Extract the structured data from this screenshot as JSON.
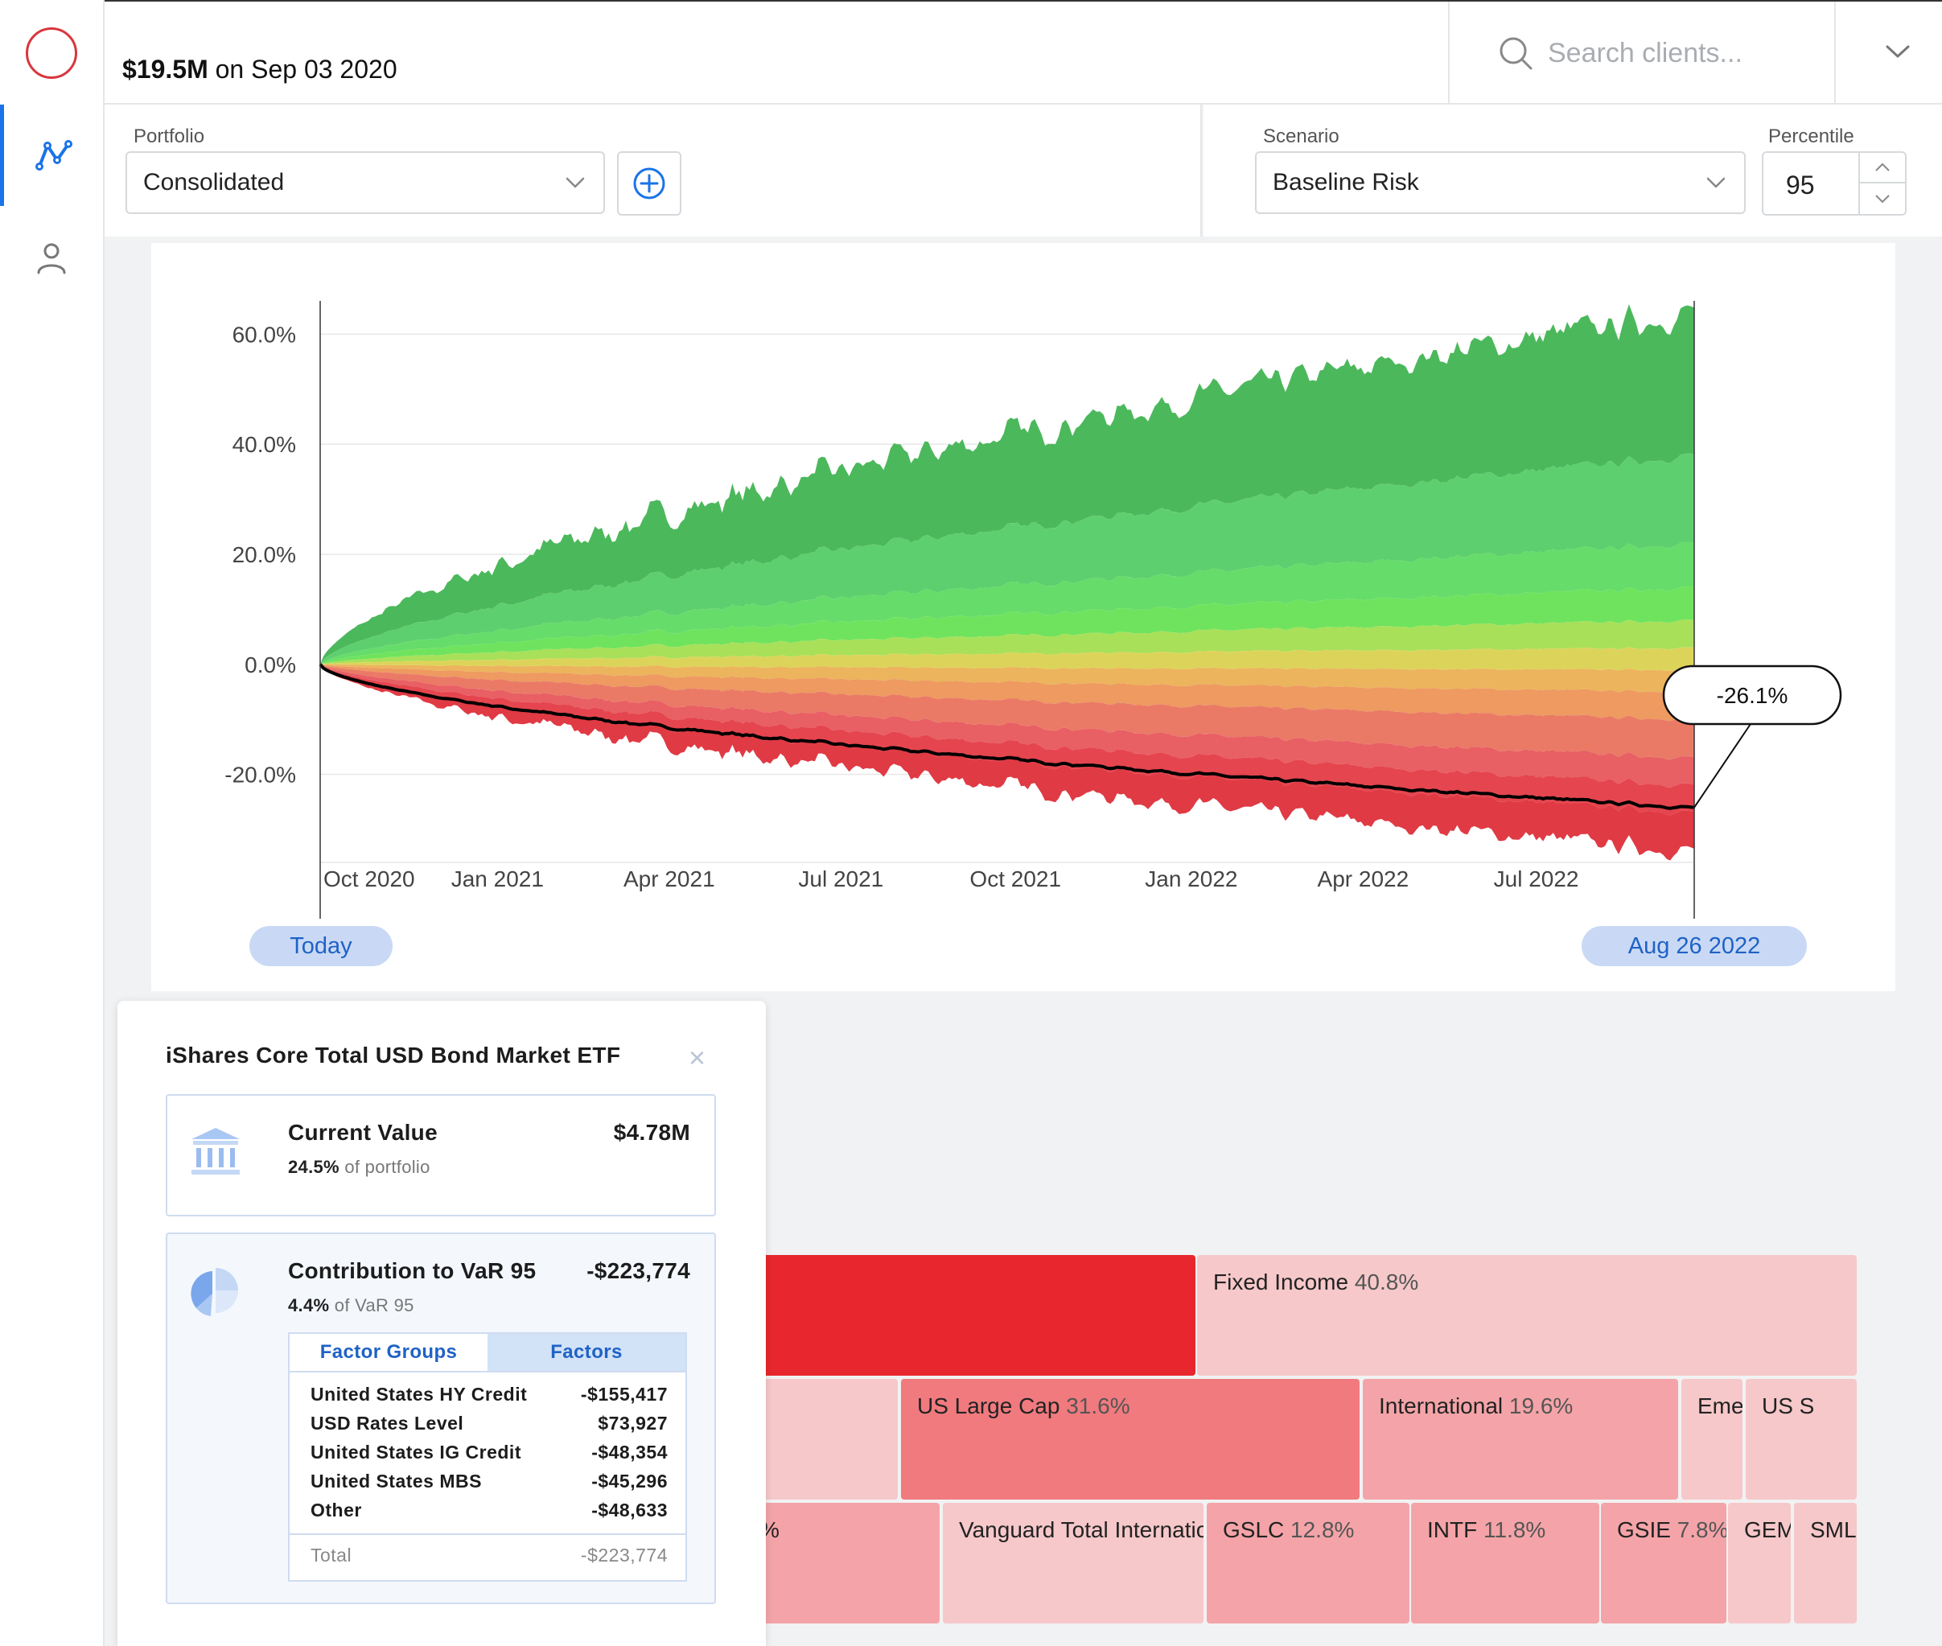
{
  "header": {
    "value": "$19.5M",
    "date_text": "on Sep 03 2020",
    "search_placeholder": "Search clients..."
  },
  "controls": {
    "portfolio_label": "Portfolio",
    "portfolio_value": "Consolidated",
    "scenario_label": "Scenario",
    "scenario_value": "Baseline Risk",
    "percentile_label": "Percentile",
    "percentile_value": "95"
  },
  "chart_data": {
    "type": "area",
    "x_ticks": [
      "Oct 2020",
      "Jan 2021",
      "Apr 2021",
      "Jul 2021",
      "Oct 2021",
      "Jan 2022",
      "Apr 2022",
      "Jul 2022"
    ],
    "y_ticks": [
      "60.0%",
      "40.0%",
      "20.0%",
      "0.0%",
      "-20.0%"
    ],
    "ylim": [
      -36,
      64
    ],
    "x_range": [
      "2020-09-03",
      "2022-08-26"
    ],
    "bands_end_values": [
      64,
      38,
      22,
      14,
      8,
      3,
      -1,
      -5,
      -10,
      -17,
      -22,
      -27,
      -34
    ],
    "band_colors": [
      "#4cb85c",
      "#5ecf6e",
      "#66dc6a",
      "#6fe35e",
      "#a8e05a",
      "#dcd45a",
      "#ecb45c",
      "#ee9a60",
      "#ea7a66",
      "#e85f64",
      "#e5454e",
      "#e03a44"
    ],
    "var_line_end": -26.1,
    "callout": "-26.1%",
    "start_label": "Today",
    "end_label": "Aug 26 2022"
  },
  "popup": {
    "title": "iShares Core Total USD Bond Market ETF",
    "close_glyph": "×",
    "current_value_label": "Current Value",
    "current_value": "$4.78M",
    "current_pct": "24.5%",
    "current_pct_suffix": "of portfolio",
    "contribution_label": "Contribution to VaR 95",
    "contribution_value": "-$223,774",
    "contribution_pct": "4.4%",
    "contribution_pct_suffix": "of VaR 95",
    "tabs": [
      "Factor Groups",
      "Factors"
    ],
    "rows": [
      {
        "name": "United States HY Credit",
        "value": "-$155,417"
      },
      {
        "name": "USD Rates Level",
        "value": "$73,927"
      },
      {
        "name": "United States IG Credit",
        "value": "-$48,354"
      },
      {
        "name": "United States MBS",
        "value": "-$45,296"
      },
      {
        "name": "Other",
        "value": "-$48,633"
      }
    ],
    "total_label": "Total",
    "total_value": "-$223,774"
  },
  "treemap": [
    {
      "label": "",
      "pct": "",
      "color": "#e8262e"
    },
    {
      "label": "Fixed Income",
      "pct": "40.8%",
      "color": "#f6c8ca"
    },
    {
      "label": "",
      "pct": "",
      "color": "#f6c8ca"
    },
    {
      "label": "US Large Cap",
      "pct": "31.6%",
      "color": "#f07a7e"
    },
    {
      "label": "International",
      "pct": "19.6%",
      "color": "#f4a4a8"
    },
    {
      "label": "Eme",
      "pct": "",
      "color": "#f6c8ca"
    },
    {
      "label": "US S",
      "pct": "",
      "color": "#f6c8ca"
    },
    {
      "label": "%",
      "pct": "",
      "color": "#f4a4a8"
    },
    {
      "label": "Vanguard Total Internatic",
      "pct": "",
      "color": "#f6c8ca"
    },
    {
      "label": "GSLC",
      "pct": "12.8%",
      "color": "#f4a4a8"
    },
    {
      "label": "INTF",
      "pct": "11.8%",
      "color": "#f4a4a8"
    },
    {
      "label": "GSIE",
      "pct": "7.8%",
      "color": "#f4a4a8"
    },
    {
      "label": "GEM",
      "pct": "",
      "color": "#f6c8ca"
    },
    {
      "label": "SML",
      "pct": "",
      "color": "#f6c8ca"
    }
  ]
}
